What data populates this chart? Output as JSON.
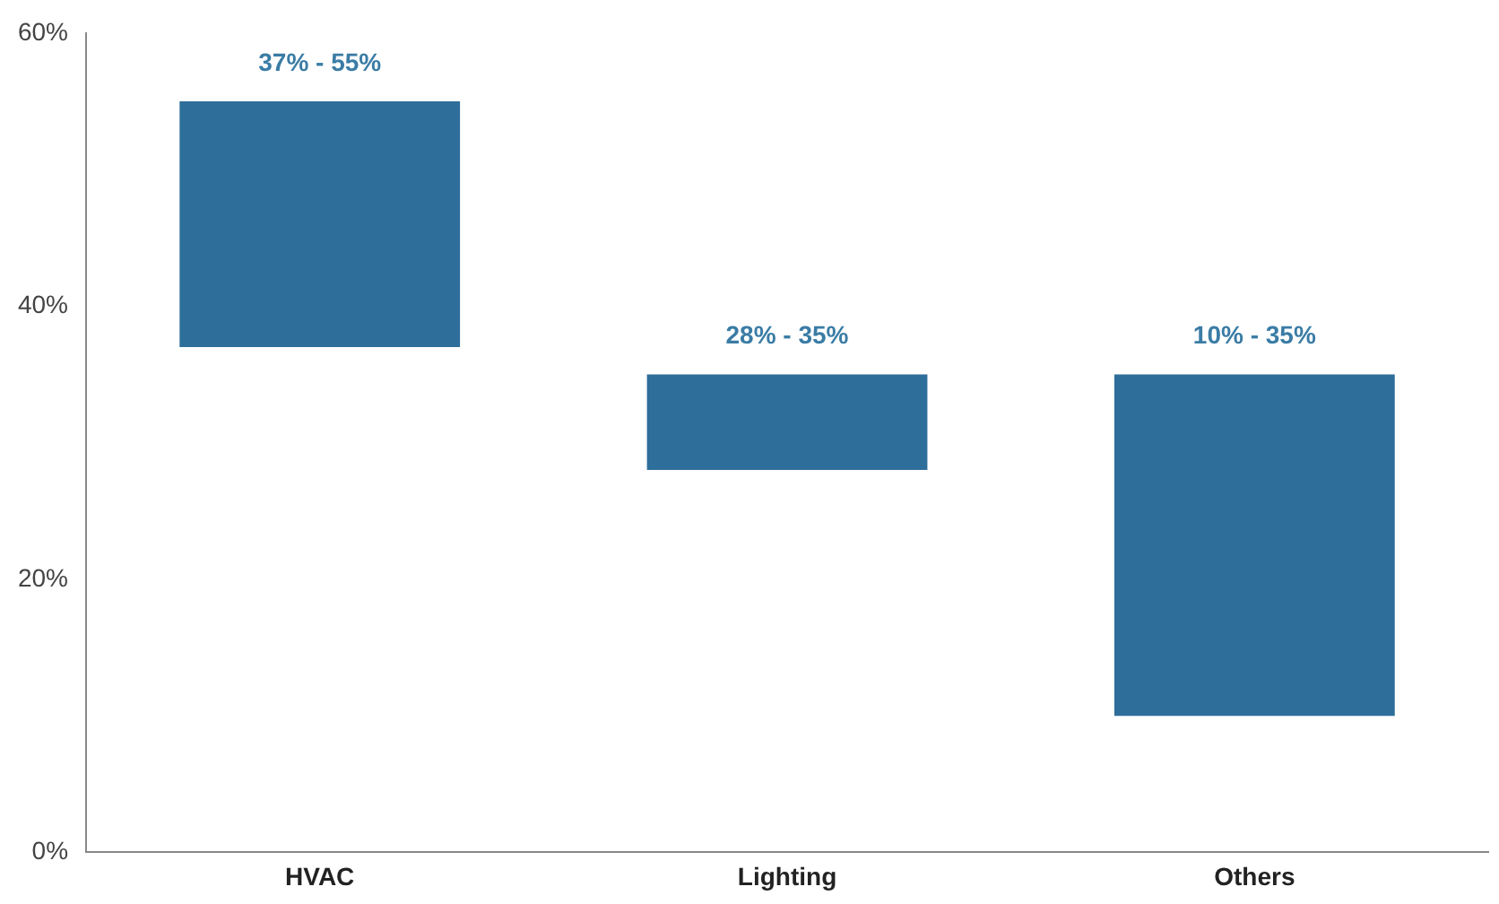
{
  "chart_data": {
    "type": "bar",
    "categories": [
      "HVAC",
      "Lighting",
      "Others"
    ],
    "base": [
      37,
      28,
      10
    ],
    "values": [
      18,
      7,
      25
    ],
    "annotations": [
      {
        "text": "37% - 55%",
        "x": "HVAC",
        "y": 55
      },
      {
        "text": "28% - 35%",
        "x": "Lighting",
        "y": 35
      },
      {
        "text": "10% - 35%",
        "x": "Others",
        "y": 35
      }
    ],
    "color": "#2e6e9a",
    "ylim": [
      0,
      60
    ],
    "yticks": [
      {
        "value": 0,
        "label": "0%"
      },
      {
        "value": 20,
        "label": "20%"
      },
      {
        "value": 40,
        "label": "40%"
      },
      {
        "value": 60,
        "label": "60%"
      }
    ],
    "grid": false,
    "legend": false
  }
}
